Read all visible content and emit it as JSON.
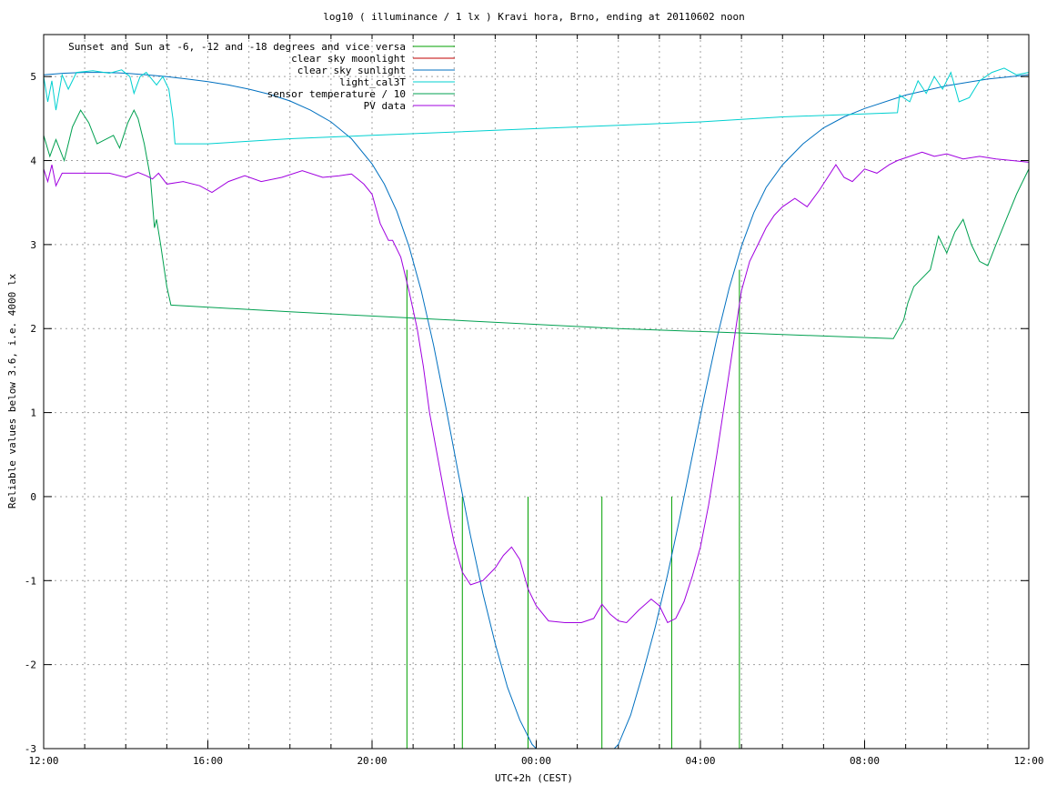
{
  "chart_data": {
    "type": "line",
    "title": "log10 ( illuminance / 1 lx ) Kravi hora, Brno, ending at 20110602 noon",
    "xlabel": "UTC+2h (CEST)",
    "ylabel": "Reliable values below 3.6, i.e. 4000 lx",
    "x_unit": "hours since 12:00",
    "xlim": [
      0,
      24
    ],
    "ylim": [
      -3,
      5.5
    ],
    "x_ticks": [
      {
        "v": 0,
        "label": "12:00"
      },
      {
        "v": 4,
        "label": "16:00"
      },
      {
        "v": 8,
        "label": "20:00"
      },
      {
        "v": 12,
        "label": "00:00"
      },
      {
        "v": 16,
        "label": "04:00"
      },
      {
        "v": 20,
        "label": "08:00"
      },
      {
        "v": 24,
        "label": "12:00"
      }
    ],
    "y_ticks": [
      {
        "v": -3,
        "label": "-3"
      },
      {
        "v": -2,
        "label": "-2"
      },
      {
        "v": -1,
        "label": "-1"
      },
      {
        "v": 0,
        "label": "0"
      },
      {
        "v": 1,
        "label": "1"
      },
      {
        "v": 2,
        "label": "2"
      },
      {
        "v": 3,
        "label": "3"
      },
      {
        "v": 4,
        "label": "4"
      },
      {
        "v": 5,
        "label": "5"
      }
    ],
    "grid": true,
    "legend_position": "top-left",
    "series": [
      {
        "name": "Sunset and Sun at -6, -12 and -18 degrees and vice versa",
        "color": "#00a000",
        "style": "impulse",
        "points": [
          [
            8.85,
            2.7
          ],
          [
            10.2,
            0
          ],
          [
            11.8,
            0
          ],
          [
            13.6,
            0
          ],
          [
            15.3,
            0
          ],
          [
            16.95,
            2.7
          ]
        ]
      },
      {
        "name": "clear sky moonlight",
        "color": "#c00000",
        "points": []
      },
      {
        "name": "clear sky sunlight",
        "color": "#0070c0",
        "points": [
          [
            0,
            5.02
          ],
          [
            0.5,
            5.04
          ],
          [
            1,
            5.05
          ],
          [
            1.5,
            5.05
          ],
          [
            2,
            5.04
          ],
          [
            2.5,
            5.02
          ],
          [
            3,
            5.0
          ],
          [
            3.5,
            4.97
          ],
          [
            4,
            4.94
          ],
          [
            4.5,
            4.9
          ],
          [
            5,
            4.85
          ],
          [
            5.5,
            4.79
          ],
          [
            6,
            4.71
          ],
          [
            6.5,
            4.6
          ],
          [
            7,
            4.46
          ],
          [
            7.5,
            4.26
          ],
          [
            8,
            3.96
          ],
          [
            8.3,
            3.72
          ],
          [
            8.6,
            3.4
          ],
          [
            8.9,
            2.98
          ],
          [
            9.2,
            2.45
          ],
          [
            9.5,
            1.8
          ],
          [
            9.8,
            1.06
          ],
          [
            10.1,
            0.28
          ],
          [
            10.4,
            -0.47
          ],
          [
            10.7,
            -1.15
          ],
          [
            11.0,
            -1.75
          ],
          [
            11.3,
            -2.27
          ],
          [
            11.6,
            -2.66
          ],
          [
            11.9,
            -2.95
          ],
          [
            12.2,
            -3.1
          ],
          [
            12.6,
            -3.2
          ],
          [
            13.0,
            -3.25
          ],
          [
            13.4,
            -3.2
          ],
          [
            13.8,
            -3.05
          ],
          [
            14.0,
            -2.95
          ],
          [
            14.3,
            -2.6
          ],
          [
            14.6,
            -2.1
          ],
          [
            14.9,
            -1.55
          ],
          [
            15.2,
            -0.93
          ],
          [
            15.5,
            -0.25
          ],
          [
            15.8,
            0.48
          ],
          [
            16.1,
            1.2
          ],
          [
            16.4,
            1.88
          ],
          [
            16.7,
            2.48
          ],
          [
            17.0,
            2.98
          ],
          [
            17.3,
            3.38
          ],
          [
            17.6,
            3.68
          ],
          [
            18,
            3.95
          ],
          [
            18.5,
            4.2
          ],
          [
            19,
            4.39
          ],
          [
            19.5,
            4.52
          ],
          [
            20,
            4.62
          ],
          [
            21,
            4.78
          ],
          [
            22,
            4.89
          ],
          [
            23,
            4.97
          ],
          [
            24,
            5.02
          ]
        ]
      },
      {
        "name": "light_cal3T",
        "color": "#00d0d0",
        "points": [
          [
            0,
            5.0
          ],
          [
            0.1,
            4.7
          ],
          [
            0.2,
            4.95
          ],
          [
            0.3,
            4.6
          ],
          [
            0.45,
            5.02
          ],
          [
            0.6,
            4.85
          ],
          [
            0.8,
            5.05
          ],
          [
            1.2,
            5.07
          ],
          [
            1.6,
            5.04
          ],
          [
            1.9,
            5.08
          ],
          [
            2.1,
            5.0
          ],
          [
            2.2,
            4.8
          ],
          [
            2.35,
            5.0
          ],
          [
            2.5,
            5.05
          ],
          [
            2.75,
            4.9
          ],
          [
            2.9,
            5.0
          ],
          [
            3.05,
            4.85
          ],
          [
            3.15,
            4.5
          ],
          [
            3.2,
            4.2
          ],
          [
            3.3,
            4.2
          ],
          [
            4,
            4.2
          ],
          [
            6,
            4.26
          ],
          [
            8,
            4.3
          ],
          [
            10,
            4.34
          ],
          [
            12,
            4.38
          ],
          [
            14,
            4.42
          ],
          [
            16,
            4.46
          ],
          [
            18,
            4.52
          ],
          [
            20.8,
            4.57
          ],
          [
            20.85,
            4.78
          ],
          [
            21.1,
            4.7
          ],
          [
            21.3,
            4.95
          ],
          [
            21.5,
            4.8
          ],
          [
            21.7,
            5.0
          ],
          [
            21.9,
            4.85
          ],
          [
            22.1,
            5.05
          ],
          [
            22.3,
            4.7
          ],
          [
            22.55,
            4.75
          ],
          [
            22.8,
            4.95
          ],
          [
            23.1,
            5.05
          ],
          [
            23.4,
            5.1
          ],
          [
            23.7,
            5.02
          ],
          [
            24,
            5.05
          ]
        ]
      },
      {
        "name": "sensor temperature / 10",
        "color": "#00a050",
        "points": [
          [
            0,
            4.3
          ],
          [
            0.15,
            4.05
          ],
          [
            0.3,
            4.25
          ],
          [
            0.5,
            4.0
          ],
          [
            0.7,
            4.4
          ],
          [
            0.9,
            4.6
          ],
          [
            1.1,
            4.45
          ],
          [
            1.3,
            4.2
          ],
          [
            1.5,
            4.25
          ],
          [
            1.7,
            4.3
          ],
          [
            1.85,
            4.15
          ],
          [
            2.05,
            4.45
          ],
          [
            2.2,
            4.6
          ],
          [
            2.3,
            4.5
          ],
          [
            2.45,
            4.2
          ],
          [
            2.6,
            3.8
          ],
          [
            2.7,
            3.2
          ],
          [
            2.75,
            3.3
          ],
          [
            2.85,
            3.0
          ],
          [
            3.0,
            2.5
          ],
          [
            3.1,
            2.28
          ],
          [
            6,
            2.2
          ],
          [
            10,
            2.1
          ],
          [
            14,
            2.0
          ],
          [
            18,
            1.93
          ],
          [
            20.7,
            1.88
          ],
          [
            20.95,
            2.1
          ],
          [
            21.05,
            2.3
          ],
          [
            21.2,
            2.5
          ],
          [
            21.4,
            2.6
          ],
          [
            21.6,
            2.7
          ],
          [
            21.8,
            3.1
          ],
          [
            22.0,
            2.9
          ],
          [
            22.2,
            3.15
          ],
          [
            22.4,
            3.3
          ],
          [
            22.6,
            3.0
          ],
          [
            22.8,
            2.8
          ],
          [
            23.0,
            2.75
          ],
          [
            23.2,
            3.0
          ],
          [
            23.45,
            3.3
          ],
          [
            23.7,
            3.6
          ],
          [
            23.9,
            3.8
          ],
          [
            24,
            3.9
          ]
        ]
      },
      {
        "name": "PV data",
        "color": "#a000e0",
        "points": [
          [
            0,
            3.9
          ],
          [
            0.1,
            3.75
          ],
          [
            0.2,
            3.95
          ],
          [
            0.3,
            3.7
          ],
          [
            0.45,
            3.85
          ],
          [
            0.8,
            3.85
          ],
          [
            1.2,
            3.85
          ],
          [
            1.6,
            3.85
          ],
          [
            2.0,
            3.8
          ],
          [
            2.3,
            3.86
          ],
          [
            2.5,
            3.82
          ],
          [
            2.65,
            3.78
          ],
          [
            2.8,
            3.85
          ],
          [
            3.0,
            3.72
          ],
          [
            3.4,
            3.75
          ],
          [
            3.8,
            3.7
          ],
          [
            4.1,
            3.62
          ],
          [
            4.5,
            3.75
          ],
          [
            4.9,
            3.82
          ],
          [
            5.3,
            3.75
          ],
          [
            5.8,
            3.8
          ],
          [
            6.3,
            3.88
          ],
          [
            6.8,
            3.8
          ],
          [
            7.2,
            3.82
          ],
          [
            7.5,
            3.84
          ],
          [
            7.8,
            3.72
          ],
          [
            8.0,
            3.6
          ],
          [
            8.2,
            3.25
          ],
          [
            8.4,
            3.05
          ],
          [
            8.5,
            3.05
          ],
          [
            8.7,
            2.85
          ],
          [
            8.9,
            2.45
          ],
          [
            9.1,
            2.0
          ],
          [
            9.25,
            1.55
          ],
          [
            9.4,
            1.0
          ],
          [
            9.55,
            0.6
          ],
          [
            9.7,
            0.2
          ],
          [
            9.85,
            -0.2
          ],
          [
            10.0,
            -0.55
          ],
          [
            10.2,
            -0.9
          ],
          [
            10.4,
            -1.05
          ],
          [
            10.7,
            -1.0
          ],
          [
            11.0,
            -0.85
          ],
          [
            11.2,
            -0.7
          ],
          [
            11.4,
            -0.6
          ],
          [
            11.6,
            -0.75
          ],
          [
            11.8,
            -1.1
          ],
          [
            12.0,
            -1.3
          ],
          [
            12.3,
            -1.48
          ],
          [
            12.7,
            -1.5
          ],
          [
            13.1,
            -1.5
          ],
          [
            13.4,
            -1.45
          ],
          [
            13.6,
            -1.28
          ],
          [
            13.8,
            -1.4
          ],
          [
            14.0,
            -1.48
          ],
          [
            14.2,
            -1.5
          ],
          [
            14.5,
            -1.35
          ],
          [
            14.8,
            -1.22
          ],
          [
            15.0,
            -1.3
          ],
          [
            15.2,
            -1.5
          ],
          [
            15.4,
            -1.45
          ],
          [
            15.6,
            -1.25
          ],
          [
            15.8,
            -0.95
          ],
          [
            16.0,
            -0.6
          ],
          [
            16.2,
            -0.1
          ],
          [
            16.4,
            0.5
          ],
          [
            16.6,
            1.15
          ],
          [
            16.8,
            1.8
          ],
          [
            17.0,
            2.45
          ],
          [
            17.2,
            2.8
          ],
          [
            17.4,
            3.0
          ],
          [
            17.6,
            3.2
          ],
          [
            17.8,
            3.35
          ],
          [
            18.0,
            3.45
          ],
          [
            18.3,
            3.55
          ],
          [
            18.6,
            3.45
          ],
          [
            18.9,
            3.65
          ],
          [
            19.1,
            3.8
          ],
          [
            19.3,
            3.95
          ],
          [
            19.5,
            3.8
          ],
          [
            19.7,
            3.75
          ],
          [
            20.0,
            3.9
          ],
          [
            20.3,
            3.85
          ],
          [
            20.6,
            3.95
          ],
          [
            20.8,
            4.0
          ],
          [
            21.1,
            4.05
          ],
          [
            21.4,
            4.1
          ],
          [
            21.7,
            4.05
          ],
          [
            22.0,
            4.08
          ],
          [
            22.4,
            4.02
          ],
          [
            22.8,
            4.05
          ],
          [
            23.2,
            4.02
          ],
          [
            23.6,
            4.0
          ],
          [
            24,
            3.98
          ]
        ]
      }
    ]
  }
}
